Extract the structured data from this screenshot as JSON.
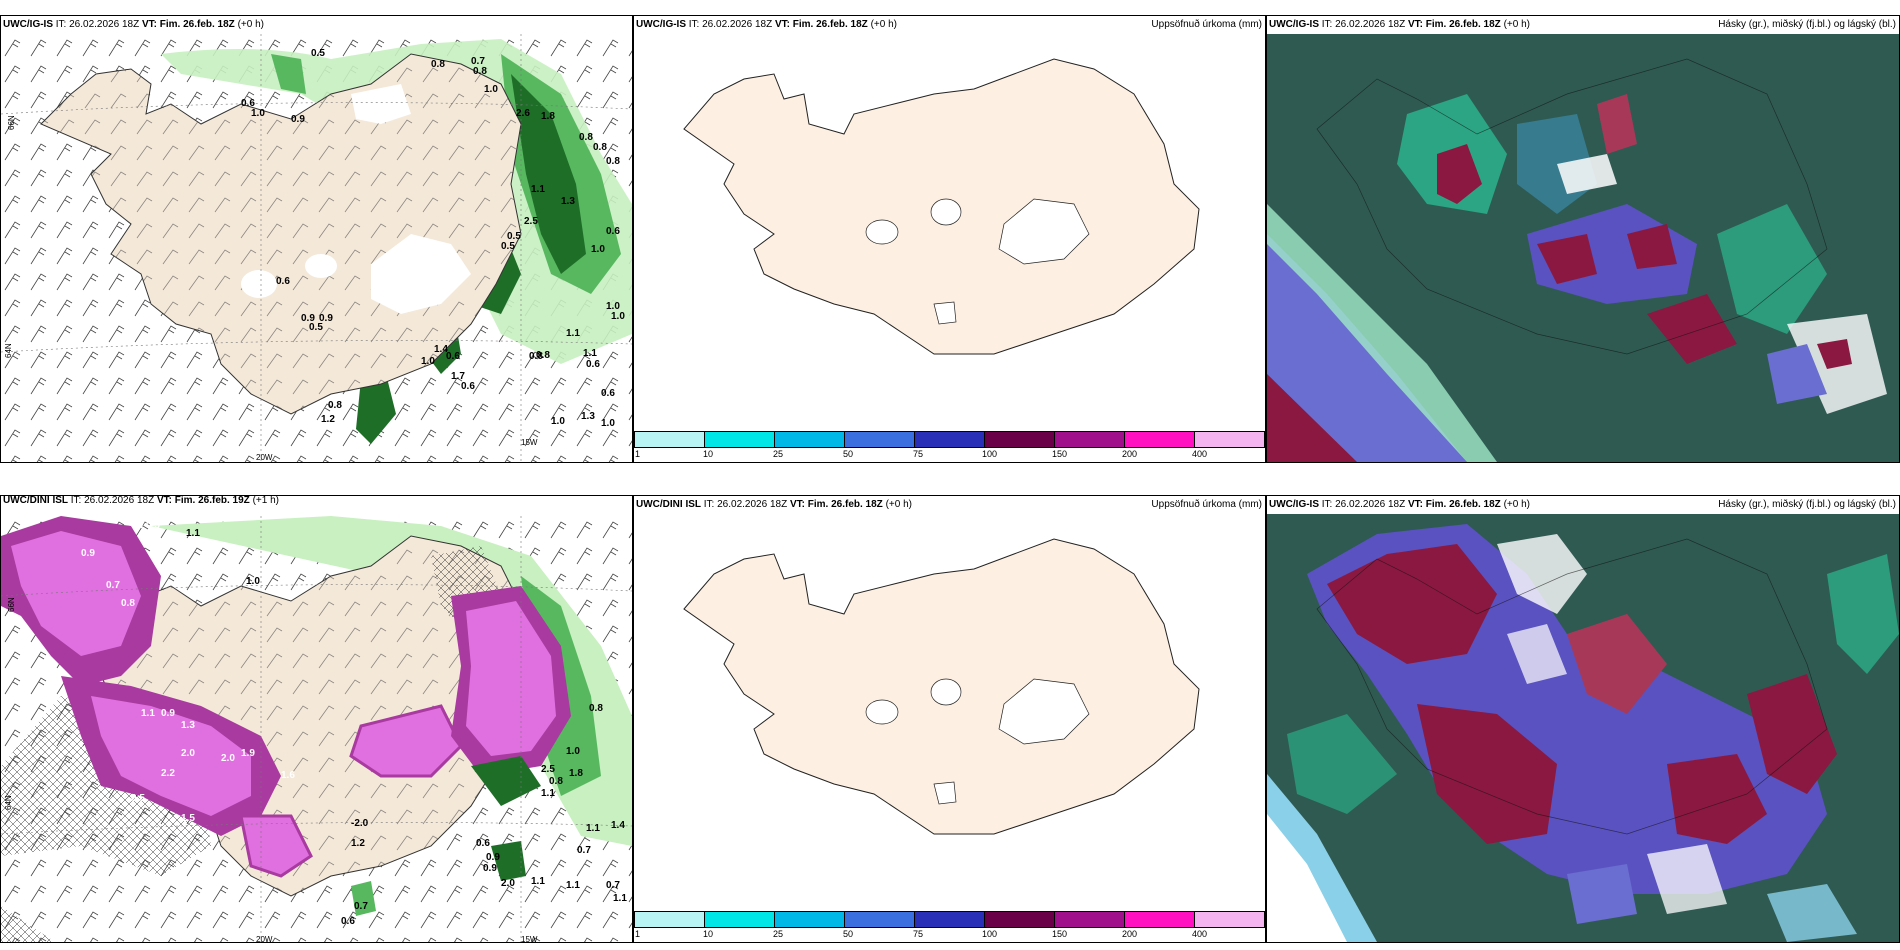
{
  "panels": {
    "top_left": {
      "src": "UWC/IG-IS",
      "it": "IT: 26.02.2026 18Z",
      "vt": "VT: Fim. 26.feb. 18Z",
      "lead": "(+0 h)",
      "right": ""
    },
    "top_mid": {
      "src": "UWC/IG-IS",
      "it": "IT: 26.02.2026 18Z",
      "vt": "VT: Fim. 26.feb. 18Z",
      "lead": "(+0 h)",
      "right": "Uppsöfnuð úrkoma (mm)"
    },
    "top_right": {
      "src": "UWC/IG-IS",
      "it": "IT: 26.02.2026 18Z",
      "vt": "VT: Fim. 26.feb. 18Z",
      "lead": "(+0 h)",
      "right": "Hásky (gr.), miðský (fj.bl.) og lágský (bl.)"
    },
    "bot_left": {
      "src": "UWC/DINI ISL",
      "it": "IT: 26.02.2026 18Z",
      "vt": "VT: Fim. 26.feb. 19Z",
      "lead": "(+1 h)",
      "right": ""
    },
    "bot_mid": {
      "src": "UWC/DINI ISL",
      "it": "IT: 26.02.2026 18Z",
      "vt": "VT: Fim. 26.feb. 18Z",
      "lead": "(+0 h)",
      "right": "Uppsöfnuð úrkoma (mm)"
    },
    "bot_right": {
      "src": "UWC/IG-IS",
      "it": "IT: 26.02.2026 18Z",
      "vt": "VT: Fim. 26.feb. 18Z",
      "lead": "(+0 h)",
      "right": "Hásky (gr.), miðský (fj.bl.) og lágský (bl.)"
    }
  },
  "axis_labels": {
    "lon_20": "20W",
    "lon_15": "15W",
    "lat_66": "66N",
    "lat_64": "64N",
    "lat_63": "63N"
  },
  "colorbar": {
    "ticks": [
      "1",
      "10",
      "25",
      "50",
      "75",
      "100",
      "150",
      "200",
      "400"
    ],
    "colors": [
      "#b8f4f4",
      "#00e5e5",
      "#00b8e8",
      "#3a6fe0",
      "#2a2fb8",
      "#6a0048",
      "#a0108a",
      "#ff10c0",
      "#f4b4f0"
    ]
  },
  "top_left_values": [
    "0.5",
    "0.8",
    "0.7",
    "0.8",
    "1.0",
    "0.6",
    "1.0",
    "0.9",
    "2.6",
    "1.8",
    "0.8",
    "0.8",
    "0.8",
    "1.1",
    "1.3",
    "0.5",
    "0.5",
    "2.5",
    "1.0",
    "0.6",
    "1.0",
    "0.9",
    "0.6",
    "0.5",
    "0.9",
    "1.4",
    "1.0",
    "0.6",
    "1.7",
    "0.6",
    "0.8",
    "1.1",
    "1.1",
    "0.6",
    "1.0",
    "0.8",
    "0.6",
    "1.3",
    "1.0",
    "1.0",
    "0.8",
    "1.2"
  ],
  "bot_left_values": [
    "0.7",
    "0.5",
    "1.1",
    "0.9",
    "1.0",
    "0.7",
    "0.8",
    "1.1",
    "0.9",
    "1.3",
    "2.0",
    "2.2",
    "1.9",
    "1.6",
    "2.0",
    "0.5",
    "1.5",
    "0.8",
    "1.1",
    "2.5",
    "1.8",
    "1.0",
    "1.1",
    "1.4",
    "0.6",
    "0.9",
    "1.2",
    "0.7",
    "0.6",
    "2.0",
    "0.7",
    "1.1",
    "1.1",
    "-2.0",
    "0.8",
    "0.9",
    "0.7",
    "1.1"
  ]
}
